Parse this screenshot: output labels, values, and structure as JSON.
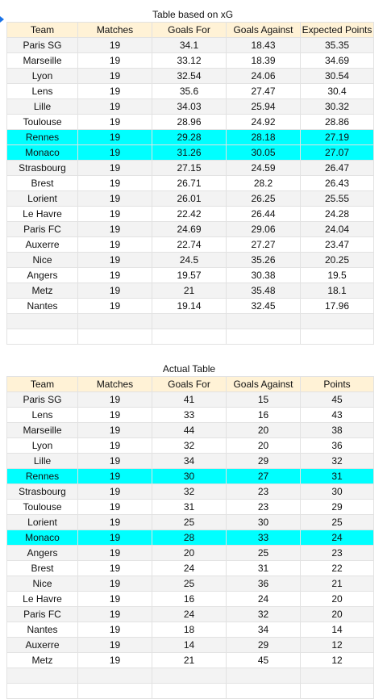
{
  "xg_table": {
    "title": "Table based on xG",
    "headers": [
      "Team",
      "Matches",
      "Goals For",
      "Goals Against",
      "Expected Points"
    ],
    "rows": [
      [
        "Paris SG",
        "19",
        "34.1",
        "18.43",
        "35.35"
      ],
      [
        "Marseille",
        "19",
        "33.12",
        "18.39",
        "34.69"
      ],
      [
        "Lyon",
        "19",
        "32.54",
        "24.06",
        "30.54"
      ],
      [
        "Lens",
        "19",
        "35.6",
        "27.47",
        "30.4"
      ],
      [
        "Lille",
        "19",
        "34.03",
        "25.94",
        "30.32"
      ],
      [
        "Toulouse",
        "19",
        "28.96",
        "24.92",
        "28.86"
      ],
      [
        "Rennes",
        "19",
        "29.28",
        "28.18",
        "27.19"
      ],
      [
        "Monaco",
        "19",
        "31.26",
        "30.05",
        "27.07"
      ],
      [
        "Strasbourg",
        "19",
        "27.15",
        "24.59",
        "26.47"
      ],
      [
        "Brest",
        "19",
        "26.71",
        "28.2",
        "26.43"
      ],
      [
        "Lorient",
        "19",
        "26.01",
        "26.25",
        "25.55"
      ],
      [
        "Le Havre",
        "19",
        "22.42",
        "26.44",
        "24.28"
      ],
      [
        "Paris FC",
        "19",
        "24.69",
        "29.06",
        "24.04"
      ],
      [
        "Auxerre",
        "19",
        "22.74",
        "27.27",
        "23.47"
      ],
      [
        "Nice",
        "19",
        "24.5",
        "35.26",
        "20.25"
      ],
      [
        "Angers",
        "19",
        "19.57",
        "30.38",
        "19.5"
      ],
      [
        "Metz",
        "19",
        "21",
        "35.48",
        "18.1"
      ],
      [
        "Nantes",
        "19",
        "19.14",
        "32.45",
        "17.96"
      ]
    ],
    "highlighted_rows": [
      6,
      7
    ]
  },
  "actual_table": {
    "title": "Actual Table",
    "headers": [
      "Team",
      "Matches",
      "Goals For",
      "Goals Against",
      "Points"
    ],
    "rows": [
      [
        "Paris SG",
        "19",
        "41",
        "15",
        "45"
      ],
      [
        "Lens",
        "19",
        "33",
        "16",
        "43"
      ],
      [
        "Marseille",
        "19",
        "44",
        "20",
        "38"
      ],
      [
        "Lyon",
        "19",
        "32",
        "20",
        "36"
      ],
      [
        "Lille",
        "19",
        "34",
        "29",
        "32"
      ],
      [
        "Rennes",
        "19",
        "30",
        "27",
        "31"
      ],
      [
        "Strasbourg",
        "19",
        "32",
        "23",
        "30"
      ],
      [
        "Toulouse",
        "19",
        "31",
        "23",
        "29"
      ],
      [
        "Lorient",
        "19",
        "25",
        "30",
        "25"
      ],
      [
        "Monaco",
        "19",
        "28",
        "33",
        "24"
      ],
      [
        "Angers",
        "19",
        "20",
        "25",
        "23"
      ],
      [
        "Brest",
        "19",
        "24",
        "31",
        "22"
      ],
      [
        "Nice",
        "19",
        "25",
        "36",
        "21"
      ],
      [
        "Le Havre",
        "19",
        "16",
        "24",
        "20"
      ],
      [
        "Paris FC",
        "19",
        "24",
        "32",
        "20"
      ],
      [
        "Nantes",
        "19",
        "18",
        "34",
        "14"
      ],
      [
        "Auxerre",
        "19",
        "14",
        "29",
        "12"
      ],
      [
        "Metz",
        "19",
        "21",
        "45",
        "12"
      ]
    ],
    "highlighted_rows": [
      5,
      9
    ]
  },
  "colors": {
    "highlight": "#00ffff",
    "header_fill": "#fff2d6",
    "zebra_fill": "#f3f3f3",
    "gridline": "#e2e2e2"
  }
}
